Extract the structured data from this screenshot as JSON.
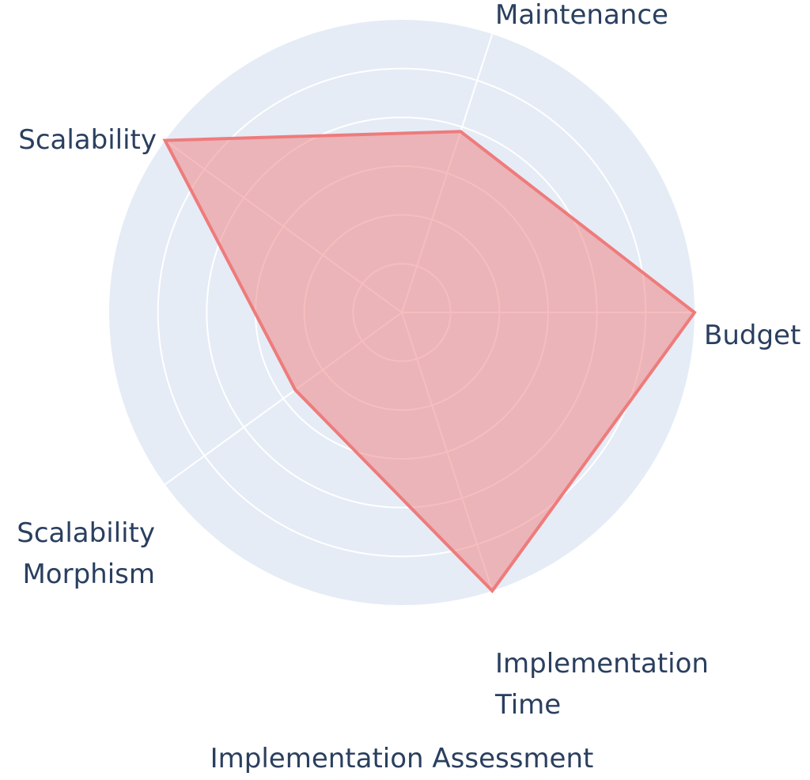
{
  "chart_data": {
    "type": "radar",
    "title": "Implementation Assessment",
    "axes": [
      {
        "label_lines": [
          "Budget"
        ]
      },
      {
        "label_lines": [
          "Maintenance"
        ]
      },
      {
        "label_lines": [
          "Scalability"
        ]
      },
      {
        "label_lines": [
          "Scalability",
          "Morphism"
        ]
      },
      {
        "label_lines": [
          "Implementation",
          "Time"
        ]
      }
    ],
    "series": [
      {
        "values": [
          100,
          65,
          100,
          45,
          100
        ]
      }
    ],
    "rmax": 100,
    "grid": true,
    "legend": "none",
    "colors": {
      "polar_bg": "#e5ecf6",
      "grid": "#ffffff",
      "line": "#ef7b7b",
      "fill": "rgba(239,123,123,0.5)",
      "text": "#2a3f5f"
    }
  }
}
